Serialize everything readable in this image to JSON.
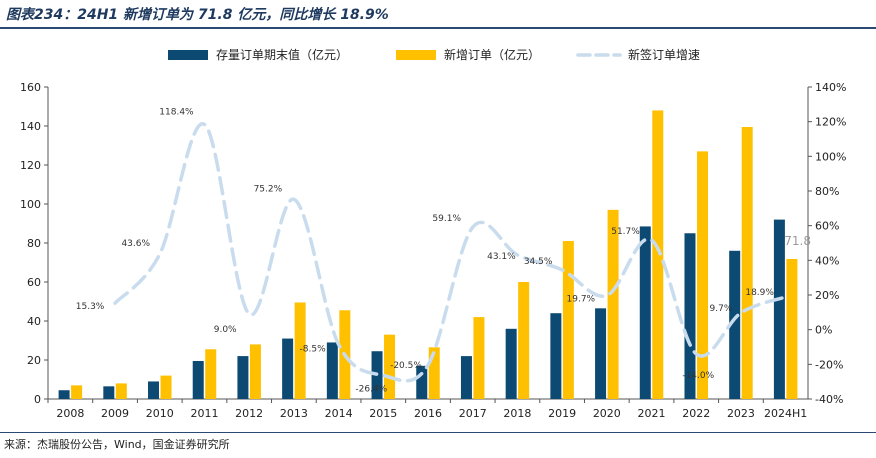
{
  "title": "图表234：24H1 新增订单为 71.8 亿元，同比增长 18.9%",
  "source": "来源：杰瑞股份公告，Wind，国金证券研究所",
  "colors": {
    "stock": "#0d4a73",
    "new": "#ffc000",
    "growth": "#c9dcee"
  },
  "chart_data": {
    "type": "bar",
    "categories": [
      "2008",
      "2009",
      "2010",
      "2011",
      "2012",
      "2013",
      "2014",
      "2015",
      "2016",
      "2017",
      "2018",
      "2019",
      "2020",
      "2021",
      "2022",
      "2023",
      "2024H1"
    ],
    "series": [
      {
        "name": "存量订单期末值（亿元）",
        "type": "bar",
        "axis": "left",
        "values": [
          4.5,
          6.5,
          9,
          19.5,
          22,
          31,
          29,
          24.5,
          17,
          22,
          36,
          44,
          46.5,
          88.5,
          85,
          76,
          92
        ]
      },
      {
        "name": "新增订单（亿元）",
        "type": "bar",
        "axis": "left",
        "values": [
          7,
          8,
          12,
          25.5,
          28,
          49.5,
          45.5,
          33,
          26.5,
          42,
          60,
          81,
          97,
          148,
          127,
          139.5,
          71.8
        ]
      },
      {
        "name": "新签订单增速",
        "type": "line",
        "axis": "right",
        "style": "dashed-smooth",
        "values": [
          null,
          15.3,
          43.6,
          118.4,
          9.0,
          75.2,
          -8.5,
          -26.4,
          -20.5,
          59.1,
          43.1,
          34.5,
          19.7,
          51.7,
          -14.0,
          9.7,
          18.9
        ]
      }
    ],
    "point_labels": [
      "",
      "15.3%",
      "43.6%",
      "118.4%",
      "9.0%",
      "75.2%",
      "-8.5%",
      "-26.4%",
      "-20.5%",
      "59.1%",
      "43.1%",
      "34.5%",
      "19.7%",
      "51.7%",
      "-14.0%",
      "9.7%",
      "18.9%"
    ],
    "last_bar_label": "71.8",
    "ylim": [
      0,
      160
    ],
    "yticks": [
      0,
      20,
      40,
      60,
      80,
      100,
      120,
      140,
      160
    ],
    "y2lim": [
      -40,
      140
    ],
    "y2ticks": [
      "-40%",
      "-20%",
      "0%",
      "20%",
      "40%",
      "60%",
      "80%",
      "100%",
      "120%",
      "140%"
    ],
    "legend_position": "top-center",
    "grid": false
  }
}
